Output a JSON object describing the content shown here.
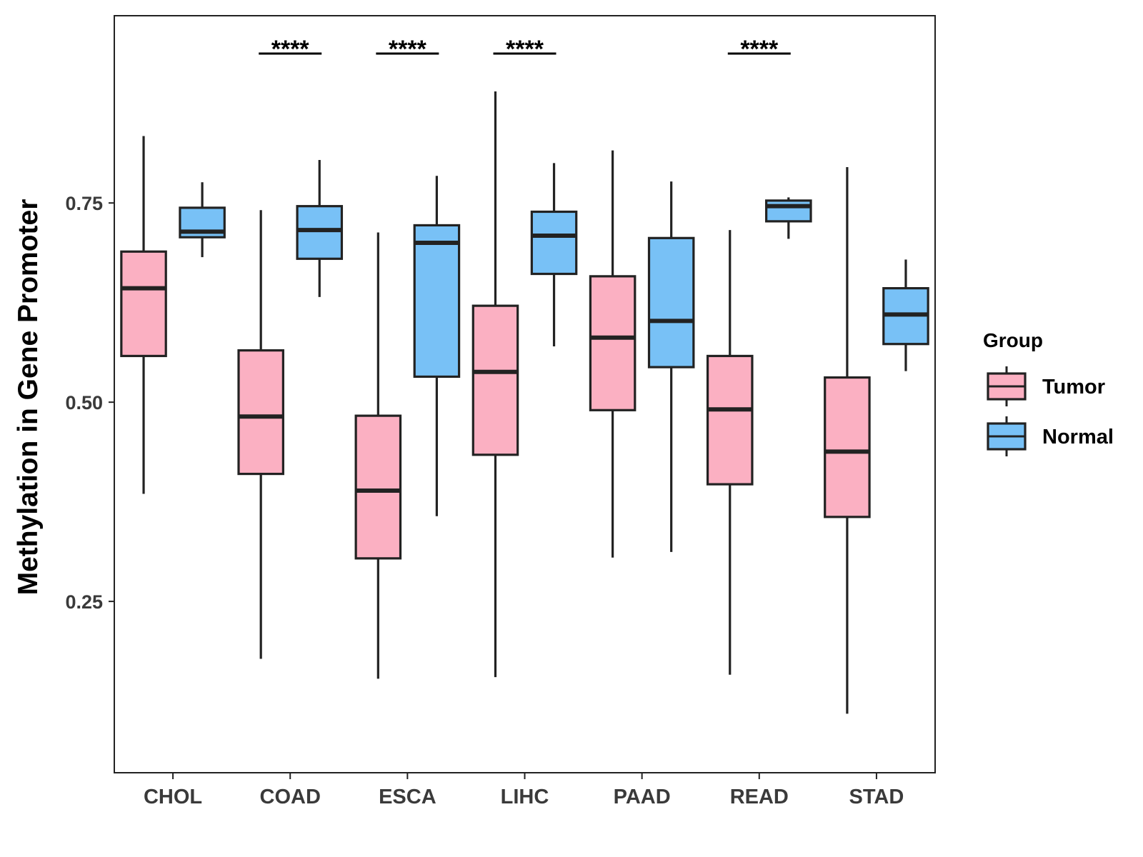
{
  "chart_data": {
    "type": "boxplot",
    "title": "",
    "xlabel": "",
    "ylabel": "Methylation in Gene Promoter",
    "ylim": [
      0.035,
      0.985
    ],
    "yticks": [
      0.25,
      0.5,
      0.75
    ],
    "ytick_labels": [
      "0.25",
      "0.50",
      "0.75"
    ],
    "categories": [
      "CHOL",
      "COAD",
      "ESCA",
      "LIHC",
      "PAAD",
      "READ",
      "STAD"
    ],
    "legend": {
      "title": "Group",
      "position": "right"
    },
    "series": [
      {
        "name": "Tumor",
        "color": "#FBB0C2",
        "boxes": [
          {
            "whisker_low": 0.385,
            "q1": 0.558,
            "median": 0.643,
            "q3": 0.689,
            "whisker_high": 0.834
          },
          {
            "whisker_low": 0.178,
            "q1": 0.41,
            "median": 0.482,
            "q3": 0.565,
            "whisker_high": 0.741
          },
          {
            "whisker_low": 0.153,
            "q1": 0.304,
            "median": 0.389,
            "q3": 0.483,
            "whisker_high": 0.713
          },
          {
            "whisker_low": 0.155,
            "q1": 0.434,
            "median": 0.538,
            "q3": 0.621,
            "whisker_high": 0.89
          },
          {
            "whisker_low": 0.305,
            "q1": 0.49,
            "median": 0.581,
            "q3": 0.658,
            "whisker_high": 0.816
          },
          {
            "whisker_low": 0.158,
            "q1": 0.397,
            "median": 0.491,
            "q3": 0.558,
            "whisker_high": 0.716
          },
          {
            "whisker_low": 0.109,
            "q1": 0.356,
            "median": 0.438,
            "q3": 0.531,
            "whisker_high": 0.795
          }
        ]
      },
      {
        "name": "Normal",
        "color": "#78C1F6",
        "boxes": [
          {
            "whisker_low": 0.682,
            "q1": 0.707,
            "median": 0.714,
            "q3": 0.744,
            "whisker_high": 0.776
          },
          {
            "whisker_low": 0.632,
            "q1": 0.68,
            "median": 0.716,
            "q3": 0.746,
            "whisker_high": 0.804
          },
          {
            "whisker_low": 0.357,
            "q1": 0.532,
            "median": 0.7,
            "q3": 0.722,
            "whisker_high": 0.784
          },
          {
            "whisker_low": 0.57,
            "q1": 0.661,
            "median": 0.709,
            "q3": 0.739,
            "whisker_high": 0.8
          },
          {
            "whisker_low": 0.312,
            "q1": 0.544,
            "median": 0.602,
            "q3": 0.706,
            "whisker_high": 0.777
          },
          {
            "whisker_low": 0.705,
            "q1": 0.727,
            "median": 0.746,
            "q3": 0.753,
            "whisker_high": 0.757
          },
          {
            "whisker_low": 0.539,
            "q1": 0.573,
            "median": 0.61,
            "q3": 0.643,
            "whisker_high": 0.679
          }
        ]
      }
    ],
    "significance": [
      {
        "category": "COAD",
        "label": "****"
      },
      {
        "category": "ESCA",
        "label": "****"
      },
      {
        "category": "LIHC",
        "label": "****"
      },
      {
        "category": "READ",
        "label": "****"
      }
    ]
  }
}
